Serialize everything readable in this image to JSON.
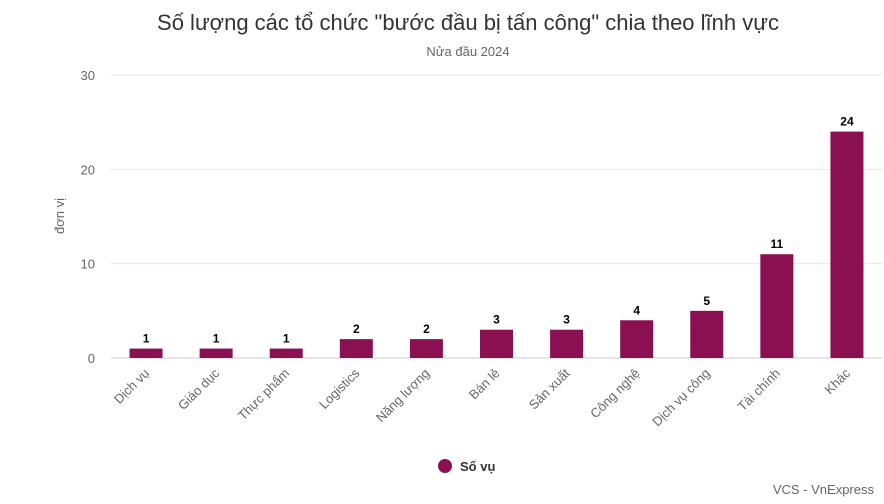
{
  "chart_data": {
    "type": "bar",
    "title": "Số lượng các tổ chức \"bước đầu bị tấn công\" chia theo lĩnh vực",
    "subtitle": "Nửa đầu 2024",
    "ylabel": "đơn vị",
    "xlabel": "",
    "ylim": [
      0,
      30
    ],
    "yticks": [
      0,
      10,
      20,
      30
    ],
    "categories": [
      "Dịch vụ",
      "Giáo dục",
      "Thực phẩm",
      "Logistics",
      "Năng lượng",
      "Bán lẻ",
      "Sản xuất",
      "Công nghệ",
      "Dịch vụ công",
      "Tài chính",
      "Khác"
    ],
    "series": [
      {
        "name": "Số vụ",
        "color": "#8B1052",
        "values": [
          1,
          1,
          1,
          2,
          2,
          3,
          3,
          4,
          5,
          11,
          24
        ]
      }
    ],
    "grid": true,
    "legend": "bottom-center",
    "credit": "VCS - VnExpress"
  }
}
